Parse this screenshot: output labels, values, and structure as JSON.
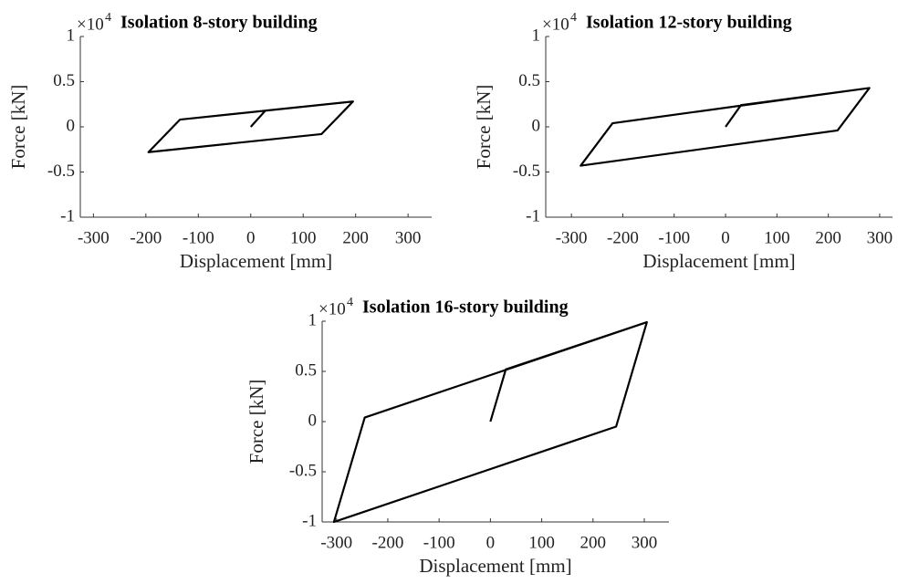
{
  "chart_data": [
    {
      "type": "line",
      "title": "Isolation 8-story building",
      "xlabel": "Displacement [mm]",
      "ylabel": "Force [kN]",
      "y_multiplier": "×10",
      "y_multiplier_exp": "4",
      "xlim": [
        -325,
        345
      ],
      "ylim": [
        -1,
        1
      ],
      "xticks": [
        -300,
        -200,
        -100,
        0,
        100,
        200,
        300
      ],
      "yticks": [
        -1,
        -0.5,
        0,
        0.5,
        1
      ],
      "series": [
        {
          "color": "#000000",
          "x": [
            0,
            28,
            195,
            135,
            -195,
            -135,
            195
          ],
          "values": [
            0,
            0.18,
            0.28,
            -0.08,
            -0.28,
            0.08,
            0.28
          ]
        }
      ]
    },
    {
      "type": "line",
      "title": "Isolation 12-story building",
      "xlabel": "Displacement [mm]",
      "ylabel": "Force [kN]",
      "y_multiplier": "×10",
      "y_multiplier_exp": "4",
      "xlim": [
        -350,
        325
      ],
      "ylim": [
        -1,
        1
      ],
      "xticks": [
        -300,
        -200,
        -100,
        0,
        100,
        200,
        300
      ],
      "yticks": [
        -1,
        -0.5,
        0,
        0.5,
        1
      ],
      "series": [
        {
          "color": "#000000",
          "x": [
            0,
            30,
            280,
            218,
            -282,
            -220,
            280
          ],
          "values": [
            0,
            0.24,
            0.43,
            -0.04,
            -0.43,
            0.04,
            0.43
          ]
        }
      ]
    },
    {
      "type": "line",
      "title": "Isolation 16-story building",
      "xlabel": "Displacement [mm]",
      "ylabel": "Force [kN]",
      "y_multiplier": "×10",
      "y_multiplier_exp": "4",
      "xlim": [
        -328,
        348
      ],
      "ylim": [
        -1,
        1
      ],
      "xticks": [
        -300,
        -200,
        -100,
        0,
        100,
        200,
        300
      ],
      "yticks": [
        -1,
        -0.5,
        0,
        0.5,
        1
      ],
      "series": [
        {
          "color": "#000000",
          "x": [
            0,
            30,
            305,
            245,
            -305,
            -245,
            305
          ],
          "values": [
            0,
            0.52,
            0.99,
            -0.05,
            -1,
            0.04,
            0.99
          ]
        }
      ]
    }
  ]
}
